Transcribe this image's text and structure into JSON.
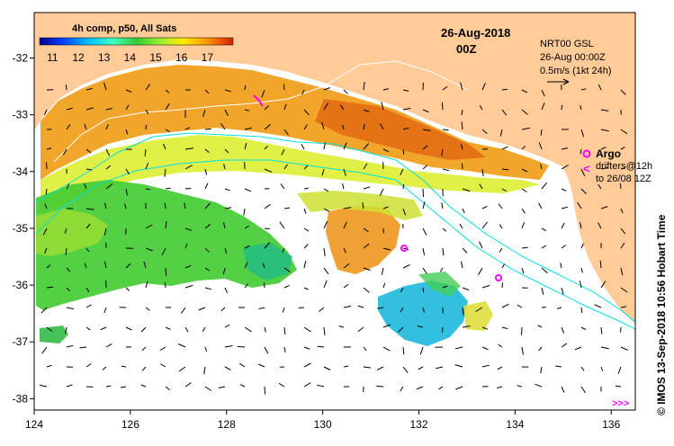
{
  "map": {
    "product_title": "4h comp, p50, All Sats",
    "date_line1": "26-Aug-2018",
    "date_line2": "00Z",
    "current_info": [
      "NRT00 GSL",
      "26-Aug 00:00Z",
      "0.5m/s (1kt 24h)"
    ],
    "argo_label": "Argo",
    "drifter_label_1": "drifters@12h",
    "drifter_label_2": "to 26/08 12Z",
    "credit": "© IMOS 13-Sep-2018 10:56 Hobart Time",
    "x_ticks": [
      124,
      126,
      128,
      130,
      132,
      134,
      136
    ],
    "y_ticks": [
      -32,
      -33,
      -34,
      -35,
      -36,
      -37,
      -38
    ],
    "lon_range": [
      124,
      136.5
    ],
    "lat_range": [
      -31.2,
      -38.2
    ],
    "colorbar_ticks": [
      11,
      12,
      13,
      14,
      15,
      16,
      17
    ],
    "colorbar_range": [
      10.5,
      18
    ],
    "colors": {
      "land": "#ffcc99",
      "ocean_no_data": "#ffffff",
      "bathymetry_contour": "#00e0e0",
      "argo_marker": "#ff00ff",
      "colormap": [
        "#00008f",
        "#0040ff",
        "#00bfff",
        "#40ffbf",
        "#33cc33",
        "#99ee33",
        "#ffee00",
        "#ff9900",
        "#ee5500",
        "#cc2200"
      ]
    }
  }
}
